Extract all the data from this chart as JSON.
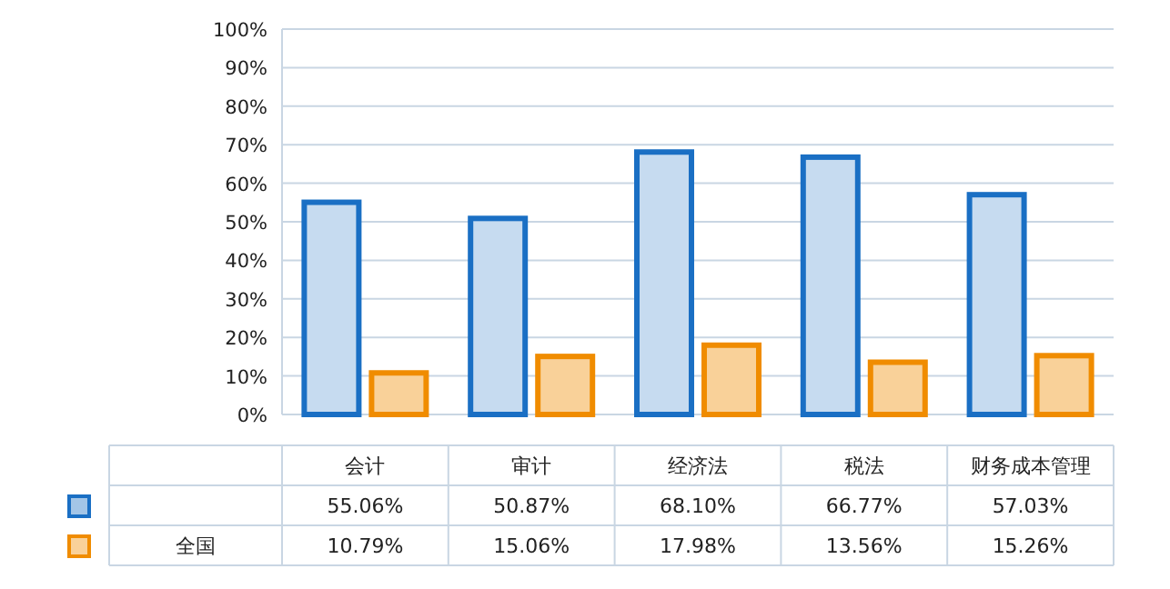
{
  "chart_data": {
    "type": "bar",
    "categories": [
      "会计",
      "审计",
      "经济法",
      "税法",
      "财务成本管理"
    ],
    "series": [
      {
        "color": "#1a6fc4",
        "values": [
          55.06,
          50.87,
          68.1,
          66.77,
          57.03
        ],
        "value_labels": [
          "55.06%",
          "50.87%",
          "68.10%",
          "66.77%",
          "57.03%"
        ]
      },
      {
        "name": "全国",
        "color": "#f08c00",
        "values": [
          10.79,
          15.06,
          17.98,
          13.56,
          15.26
        ],
        "value_labels": [
          "10.79%",
          "15.06%",
          "17.98%",
          "13.56%",
          "15.26%"
        ]
      }
    ],
    "ylim": [
      0,
      100
    ],
    "yticks": [
      {
        "value": 0,
        "label": "0%"
      },
      {
        "value": 10,
        "label": "10%"
      },
      {
        "value": 20,
        "label": "20%"
      },
      {
        "value": 30,
        "label": "30%"
      },
      {
        "value": 40,
        "label": "40%"
      },
      {
        "value": 50,
        "label": "50%"
      },
      {
        "value": 60,
        "label": "60%"
      },
      {
        "value": 70,
        "label": "70%"
      },
      {
        "value": 80,
        "label": "80%"
      },
      {
        "value": 90,
        "label": "90%"
      },
      {
        "value": 100,
        "label": "100%"
      }
    ],
    "grid": "y"
  }
}
